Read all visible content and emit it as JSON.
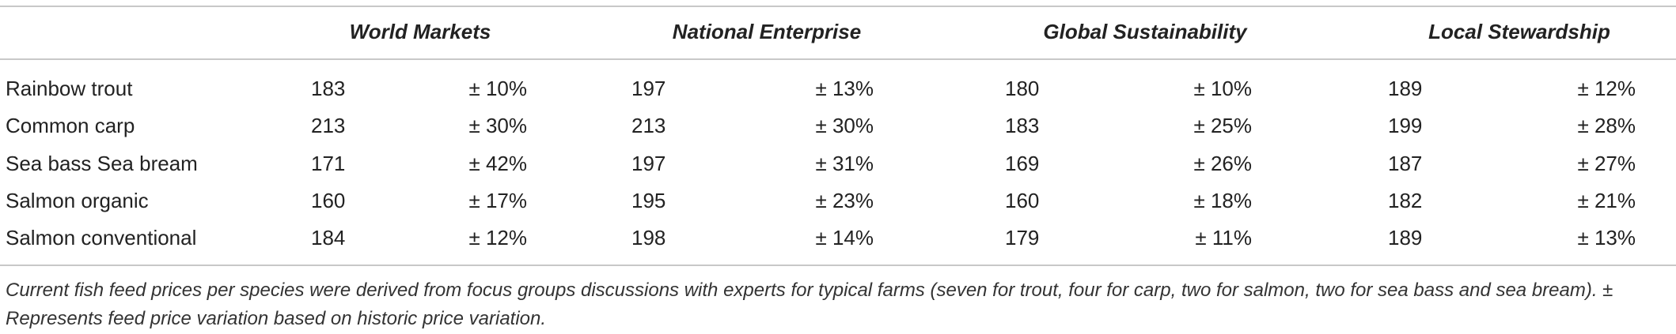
{
  "table": {
    "columns": [
      "World Markets",
      "National Enterprise",
      "Global Sustainability",
      "Local Stewardship"
    ],
    "rows": [
      {
        "label": "Rainbow trout",
        "cells": [
          [
            "183",
            "± 10%"
          ],
          [
            "197",
            "± 13%"
          ],
          [
            "180",
            "± 10%"
          ],
          [
            "189",
            "± 12%"
          ]
        ]
      },
      {
        "label": "Common carp",
        "cells": [
          [
            "213",
            "± 30%"
          ],
          [
            "213",
            "± 30%"
          ],
          [
            "183",
            "± 25%"
          ],
          [
            "199",
            "± 28%"
          ]
        ]
      },
      {
        "label": "Sea bass Sea bream",
        "cells": [
          [
            "171",
            "± 42%"
          ],
          [
            "197",
            "± 31%"
          ],
          [
            "169",
            "± 26%"
          ],
          [
            "187",
            "± 27%"
          ]
        ]
      },
      {
        "label": "Salmon organic",
        "cells": [
          [
            "160",
            "± 17%"
          ],
          [
            "195",
            "± 23%"
          ],
          [
            "160",
            "± 18%"
          ],
          [
            "182",
            "± 21%"
          ]
        ]
      },
      {
        "label": "Salmon conventional",
        "cells": [
          [
            "184",
            "± 12%"
          ],
          [
            "198",
            "± 14%"
          ],
          [
            "179",
            "± 11%"
          ],
          [
            "189",
            "± 13%"
          ]
        ]
      }
    ],
    "footnote": "Current fish feed prices per species were derived from focus groups discussions with experts for typical farms (seven for trout, four for carp, two for salmon, two for sea bass and sea bream). ± Represents feed price variation based on historic price variation."
  }
}
